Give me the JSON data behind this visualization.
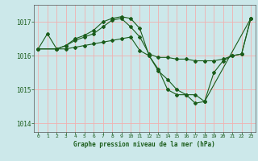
{
  "background_color": "#cce8ea",
  "grid_color_v": "#f0b0b0",
  "grid_color_h": "#c0dde0",
  "line_color": "#1a5c1a",
  "title": "Graphe pression niveau de la mer (hPa)",
  "xlim": [
    -0.5,
    23.5
  ],
  "ylim": [
    1013.75,
    1017.5
  ],
  "yticks": [
    1014,
    1015,
    1016,
    1017
  ],
  "xticks": [
    0,
    1,
    2,
    3,
    4,
    5,
    6,
    7,
    8,
    9,
    10,
    11,
    12,
    13,
    14,
    15,
    16,
    17,
    18,
    19,
    20,
    21,
    22,
    23
  ],
  "series": [
    {
      "x": [
        0,
        1,
        2,
        3,
        4,
        5,
        6,
        7,
        8,
        9,
        10,
        11,
        12,
        13,
        14,
        15,
        16,
        17,
        18,
        19,
        20,
        21,
        22,
        23
      ],
      "y": [
        1016.2,
        1016.65,
        1016.2,
        1016.3,
        1016.45,
        1016.55,
        1016.65,
        1016.85,
        1017.05,
        1017.1,
        1016.85,
        1016.55,
        1016.05,
        1015.95,
        1015.95,
        1015.9,
        1015.9,
        1015.85,
        1015.85,
        1015.85,
        1015.9,
        1016.0,
        1016.05,
        1017.1
      ]
    },
    {
      "x": [
        0,
        2,
        3,
        4,
        5,
        6,
        7,
        8,
        9,
        10,
        11,
        12,
        13,
        14,
        15,
        16,
        17,
        18,
        19,
        20,
        21,
        22,
        23
      ],
      "y": [
        1016.2,
        1016.2,
        1016.3,
        1016.5,
        1016.6,
        1016.75,
        1017.0,
        1017.1,
        1017.15,
        1017.1,
        1016.8,
        1016.0,
        1015.6,
        1015.0,
        1014.85,
        1014.85,
        1014.6,
        1014.65,
        1015.5,
        1015.85,
        1016.0,
        1016.05,
        1017.1
      ]
    },
    {
      "x": [
        0,
        2,
        3,
        4,
        5,
        6,
        7,
        8,
        9,
        10,
        11,
        12,
        13,
        14,
        15,
        16,
        17,
        18,
        23
      ],
      "y": [
        1016.2,
        1016.2,
        1016.2,
        1016.25,
        1016.3,
        1016.35,
        1016.4,
        1016.45,
        1016.5,
        1016.55,
        1016.15,
        1016.0,
        1015.55,
        1015.3,
        1015.0,
        1014.85,
        1014.85,
        1014.65,
        1017.1
      ]
    }
  ]
}
